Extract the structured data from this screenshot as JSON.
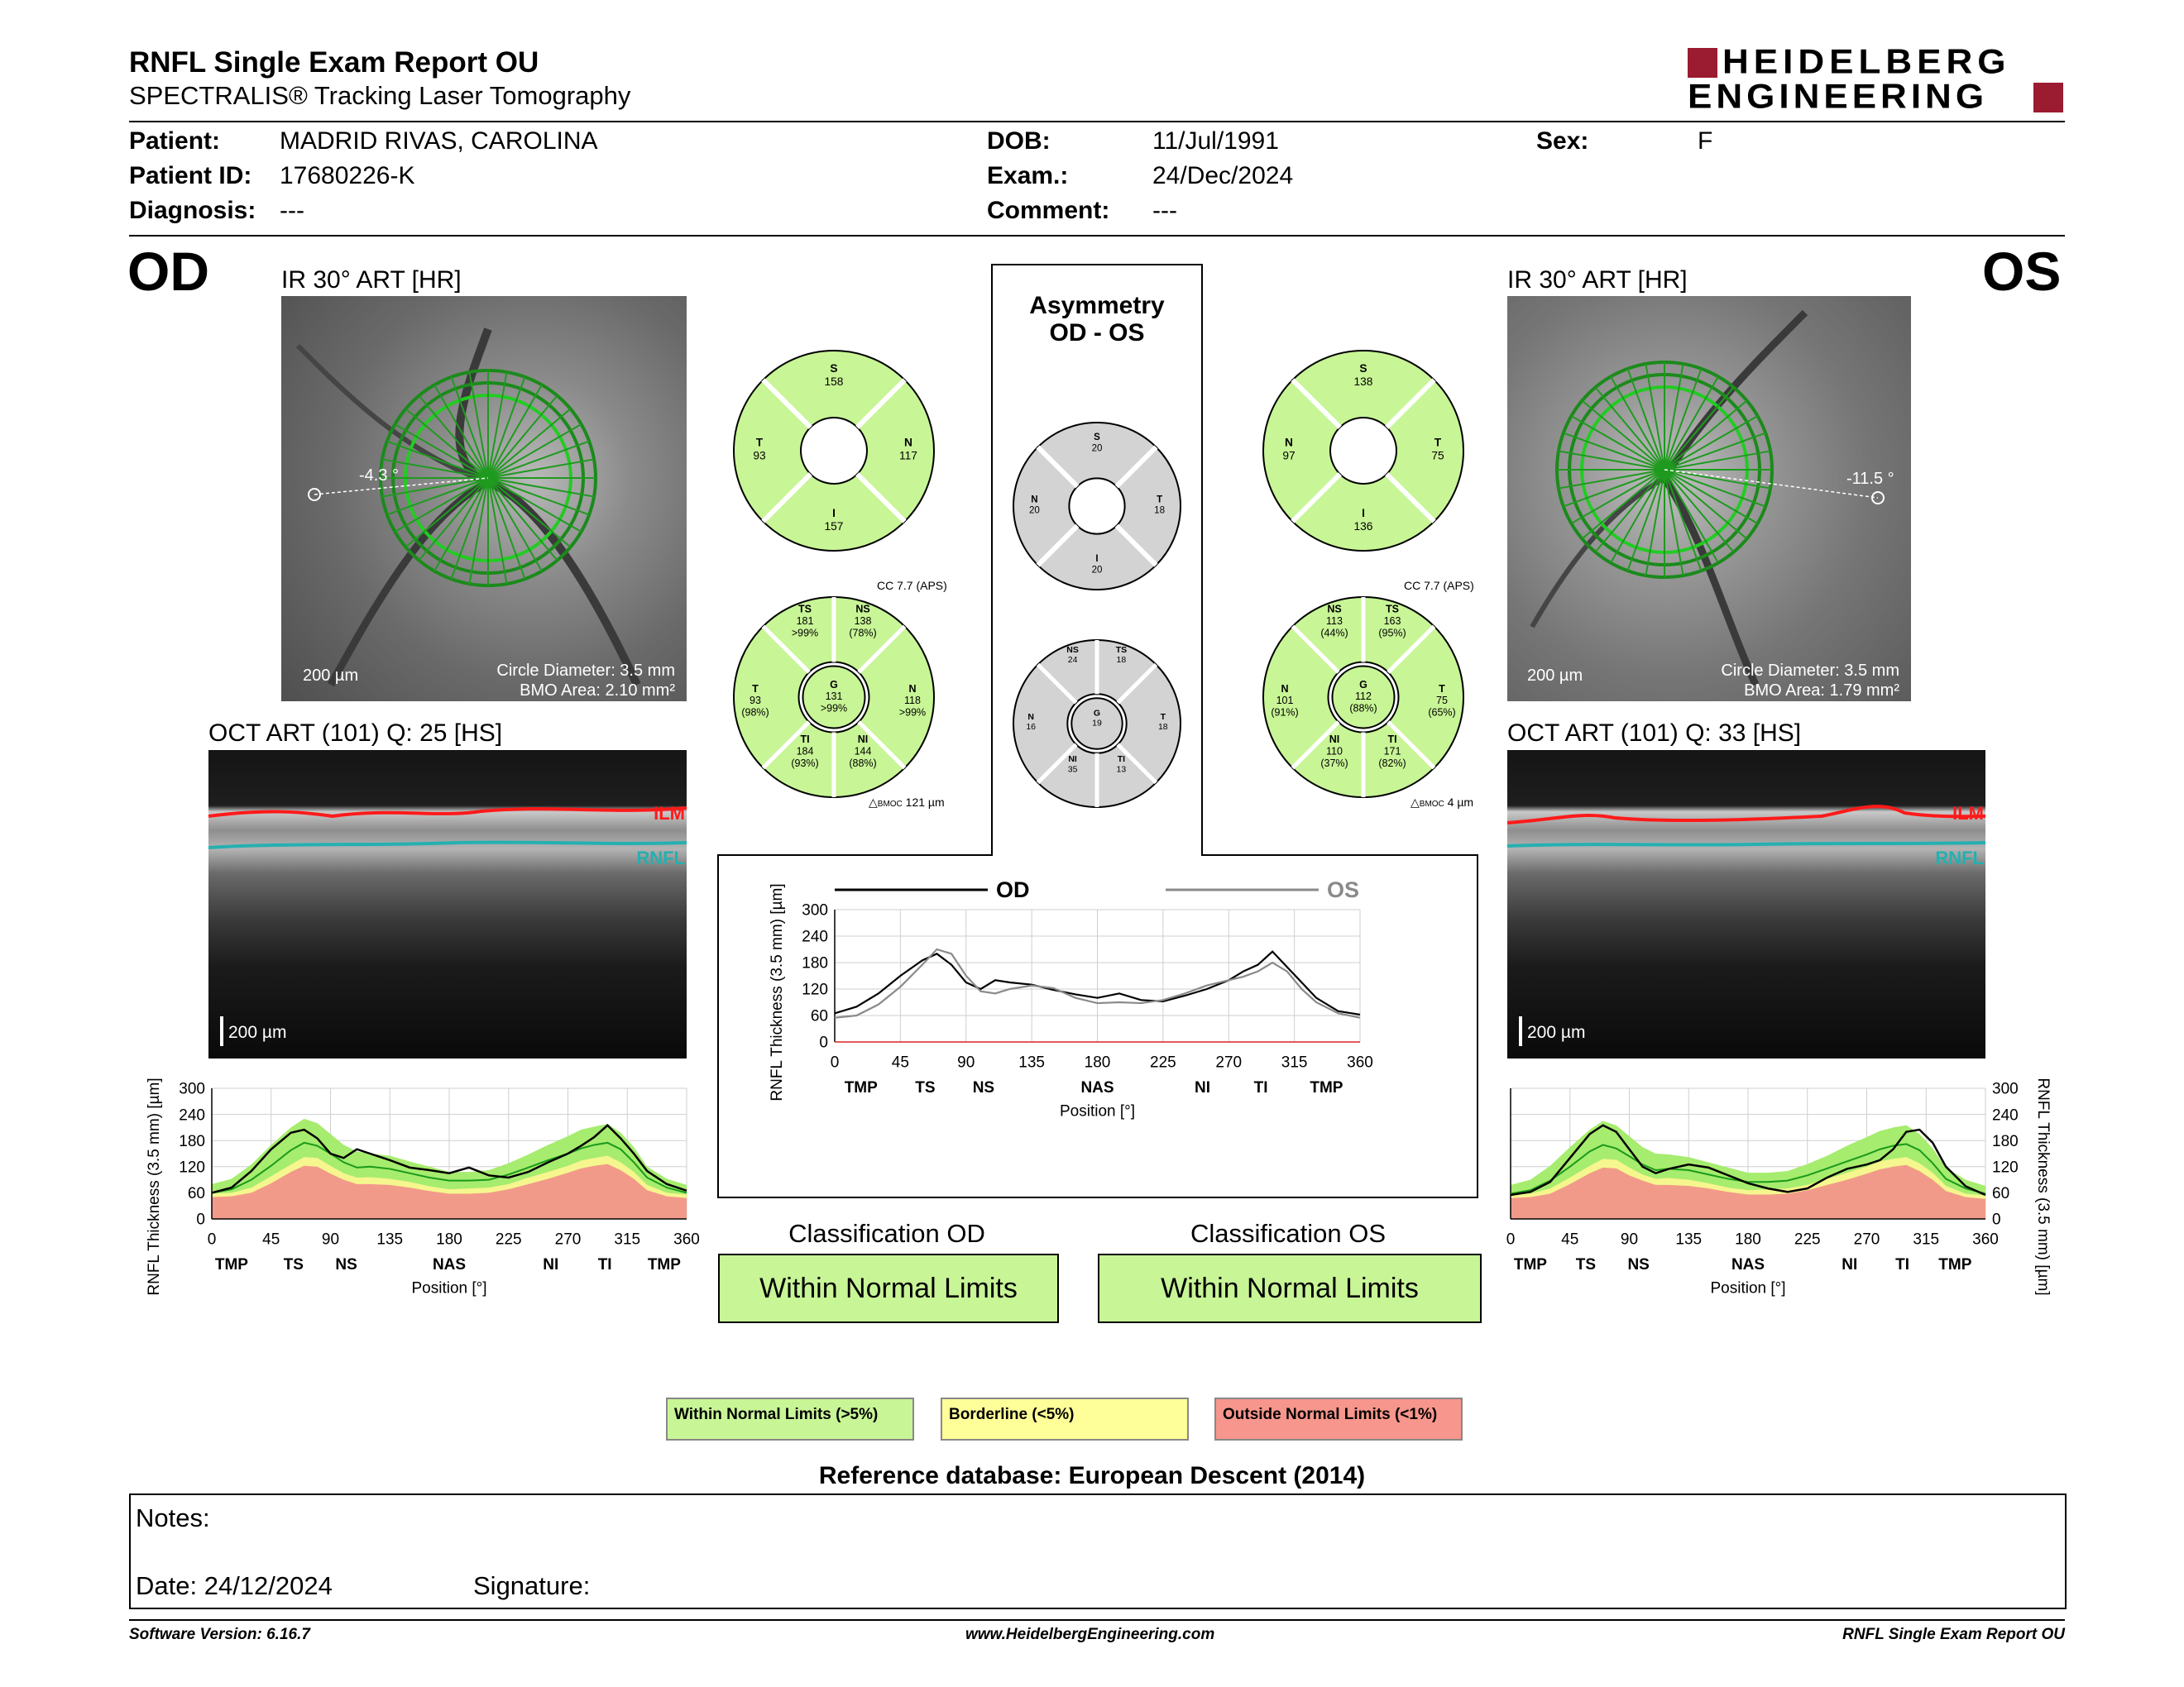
{
  "header": {
    "title": "RNFL Single Exam Report OU",
    "subtitle": "SPECTRALIS® Tracking Laser Tomography",
    "brand_line1": "HEIDELBERG",
    "brand_line2": "ENGINEERING",
    "brand_color": "#9b1b30"
  },
  "patient": {
    "patient_label": "Patient:",
    "patient_value": "MADRID RIVAS, CAROLINA",
    "id_label": "Patient ID:",
    "id_value": "17680226-K",
    "diag_label": "Diagnosis:",
    "diag_value": "---",
    "dob_label": "DOB:",
    "dob_value": "11/Jul/1991",
    "exam_label": "Exam.:",
    "exam_value": "24/Dec/2024",
    "comment_label": "Comment:",
    "comment_value": "---",
    "sex_label": "Sex:",
    "sex_value": "F"
  },
  "od": {
    "eye_label": "OD",
    "ir_title": "IR 30° ART [HR]",
    "angle": "-4.3 °",
    "scale": "200 µm",
    "circle_diameter": "Circle Diameter: 3.5 mm",
    "bmo_area": "BMO Area: 2.10 mm²",
    "oct_title": "OCT ART (101) Q: 25 [HS]",
    "oct_scale": "200 µm",
    "ilm": "ILM",
    "rnfl": "RNFL",
    "classification_label": "Classification OD",
    "classification_value": "Within Normal Limits",
    "quadrants": {
      "s_label": "S",
      "s": "158",
      "t_label": "T",
      "t": "93",
      "n_label": "N",
      "n": "117",
      "i_label": "I",
      "i": "157"
    },
    "sectors": {
      "cc": "CC 7.7 (APS)",
      "ts_label": "TS",
      "ts": "181",
      "ts_p": ">99%",
      "ns_label": "NS",
      "ns": "138",
      "ns_p": "(78%)",
      "t_label": "T",
      "t": "93",
      "t_p": "(98%)",
      "g_label": "G",
      "g": "131",
      "g_p": ">99%",
      "n_label": "N",
      "n": "118",
      "n_p": ">99%",
      "ti_label": "TI",
      "ti": "184",
      "ti_p": "(93%)",
      "ni_label": "NI",
      "ni": "144",
      "ni_p": "(88%)",
      "bmo_delta": "121 µm"
    }
  },
  "os": {
    "eye_label": "OS",
    "ir_title": "IR 30° ART [HR]",
    "angle": "-11.5 °",
    "scale": "200 µm",
    "circle_diameter": "Circle Diameter: 3.5 mm",
    "bmo_area": "BMO Area: 1.79 mm²",
    "oct_title": "OCT ART (101) Q: 33 [HS]",
    "oct_scale": "200 µm",
    "ilm": "ILM",
    "rnfl": "RNFL",
    "classification_label": "Classification OS",
    "classification_value": "Within Normal Limits",
    "quadrants": {
      "s_label": "S",
      "s": "138",
      "n_label": "N",
      "n": "97",
      "t_label": "T",
      "t": "75",
      "i_label": "I",
      "i": "136"
    },
    "sectors": {
      "cc": "CC 7.7 (APS)",
      "ns_label": "NS",
      "ns": "113",
      "ns_p": "(44%)",
      "ts_label": "TS",
      "ts": "163",
      "ts_p": "(95%)",
      "n_label": "N",
      "n": "101",
      "n_p": "(91%)",
      "g_label": "G",
      "g": "112",
      "g_p": "(88%)",
      "t_label": "T",
      "t": "75",
      "t_p": "(65%)",
      "ni_label": "NI",
      "ni": "110",
      "ni_p": "(37%)",
      "ti_label": "TI",
      "ti": "171",
      "ti_p": "(82%)",
      "bmo_delta": "4 µm"
    }
  },
  "asymmetry": {
    "title_line1": "Asymmetry",
    "title_line2": "OD - OS",
    "quadrants": {
      "s_label": "S",
      "s": "20",
      "n_label": "N",
      "n": "20",
      "t_label": "T",
      "t": "18",
      "i_label": "I",
      "i": "20"
    },
    "sectors": {
      "ns_label": "NS",
      "ns": "24",
      "ts_label": "TS",
      "ts": "18",
      "n_label": "N",
      "n": "16",
      "g_label": "G",
      "g": "19",
      "t_label": "T",
      "t": "18",
      "ni_label": "NI",
      "ni": "35",
      "ti_label": "TI",
      "ti": "13"
    }
  },
  "chart_data": [
    {
      "type": "line",
      "id": "od-profile",
      "ylabel": "RNFL Thickness (3.5 mm) [µm]",
      "xlabel": "Position [°]",
      "xlim": [
        0,
        360
      ],
      "ylim": [
        0,
        300
      ],
      "x_ticks": [
        "0",
        "45",
        "90",
        "135",
        "180",
        "225",
        "270",
        "315",
        "360"
      ],
      "y_ticks": [
        "0",
        "60",
        "120",
        "180",
        "240",
        "300"
      ],
      "region_labels": [
        "TMP",
        "TS",
        "NS",
        "NAS",
        "NI",
        "TI",
        "TMP"
      ],
      "region_positions": [
        15,
        62,
        102,
        180,
        257,
        298,
        343
      ],
      "bands": {
        "green": "#a6ec6e",
        "yellow": "#f6f68e",
        "red": "#f29a8a"
      },
      "x": [
        0,
        15,
        30,
        45,
        60,
        70,
        80,
        90,
        100,
        110,
        120,
        135,
        150,
        165,
        180,
        195,
        210,
        225,
        240,
        255,
        270,
        280,
        290,
        300,
        310,
        320,
        330,
        345,
        360
      ],
      "measured": [
        60,
        72,
        110,
        160,
        198,
        205,
        185,
        150,
        140,
        160,
        150,
        135,
        118,
        112,
        105,
        118,
        100,
        95,
        108,
        130,
        150,
        168,
        188,
        215,
        185,
        150,
        110,
        80,
        65
      ],
      "normal_mean": [
        60,
        68,
        90,
        122,
        158,
        175,
        168,
        150,
        130,
        118,
        120,
        115,
        105,
        95,
        88,
        88,
        90,
        102,
        118,
        135,
        150,
        162,
        170,
        175,
        160,
        130,
        95,
        72,
        60
      ],
      "upper": [
        80,
        92,
        125,
        170,
        210,
        230,
        220,
        195,
        170,
        155,
        150,
        145,
        132,
        120,
        108,
        108,
        112,
        128,
        148,
        170,
        190,
        205,
        212,
        218,
        198,
        165,
        120,
        92,
        78
      ],
      "yellow_top": [
        58,
        60,
        72,
        98,
        125,
        142,
        140,
        122,
        105,
        95,
        96,
        92,
        85,
        75,
        68,
        70,
        72,
        80,
        95,
        108,
        122,
        134,
        140,
        145,
        130,
        108,
        78,
        60,
        56
      ],
      "red_top": [
        50,
        52,
        60,
        82,
        108,
        122,
        120,
        104,
        90,
        80,
        80,
        78,
        72,
        64,
        58,
        58,
        60,
        68,
        80,
        92,
        106,
        116,
        122,
        126,
        112,
        92,
        66,
        52,
        48
      ]
    },
    {
      "type": "line",
      "id": "asymmetry-profile",
      "ylabel": "RNFL Thickness (3.5 mm) [µm]",
      "xlabel": "Position [°]",
      "xlim": [
        0,
        360
      ],
      "ylim": [
        0,
        300
      ],
      "x_ticks": [
        "0",
        "45",
        "90",
        "135",
        "180",
        "225",
        "270",
        "315",
        "360"
      ],
      "y_ticks": [
        "0",
        "60",
        "120",
        "180",
        "240",
        "300"
      ],
      "region_labels": [
        "TMP",
        "TS",
        "NS",
        "NAS",
        "NI",
        "TI",
        "TMP"
      ],
      "region_positions": [
        18,
        62,
        102,
        180,
        252,
        292,
        337
      ],
      "legend": [
        {
          "name": "OD",
          "color": "#000000"
        },
        {
          "name": "OS",
          "color": "#8a8a8a"
        }
      ],
      "x": [
        0,
        15,
        30,
        45,
        60,
        70,
        80,
        90,
        100,
        110,
        120,
        135,
        150,
        165,
        180,
        195,
        210,
        225,
        240,
        255,
        270,
        280,
        290,
        300,
        310,
        320,
        330,
        345,
        360
      ],
      "series": [
        {
          "name": "OD",
          "values": [
            65,
            80,
            110,
            150,
            185,
            200,
            175,
            135,
            120,
            140,
            135,
            130,
            118,
            108,
            100,
            110,
            95,
            92,
            105,
            120,
            140,
            160,
            175,
            205,
            170,
            135,
            100,
            70,
            62
          ]
        },
        {
          "name": "OS",
          "values": [
            55,
            60,
            85,
            125,
            175,
            210,
            200,
            150,
            115,
            110,
            120,
            128,
            122,
            100,
            88,
            90,
            88,
            95,
            110,
            128,
            140,
            148,
            160,
            180,
            160,
            120,
            90,
            65,
            55
          ]
        }
      ]
    },
    {
      "type": "line",
      "id": "os-profile",
      "ylabel": "RNFL Thickness (3.5 mm) [µm]",
      "xlabel": "Position [°]",
      "xlim": [
        0,
        360
      ],
      "ylim": [
        0,
        300
      ],
      "x_ticks": [
        "0",
        "45",
        "90",
        "135",
        "180",
        "225",
        "270",
        "315",
        "360"
      ],
      "y_ticks": [
        "0",
        "60",
        "120",
        "180",
        "240",
        "300"
      ],
      "region_labels": [
        "TMP",
        "TS",
        "NS",
        "NAS",
        "NI",
        "TI",
        "TMP"
      ],
      "region_positions": [
        15,
        57,
        97,
        180,
        257,
        297,
        337
      ],
      "bands": {
        "green": "#a6ec6e",
        "yellow": "#f6f68e",
        "red": "#f29a8a"
      },
      "x": [
        0,
        15,
        30,
        45,
        60,
        70,
        80,
        90,
        100,
        110,
        120,
        135,
        150,
        165,
        180,
        195,
        210,
        225,
        240,
        255,
        270,
        280,
        290,
        300,
        310,
        320,
        330,
        345,
        360
      ],
      "measured": [
        55,
        62,
        85,
        140,
        195,
        215,
        200,
        160,
        120,
        105,
        115,
        125,
        118,
        100,
        82,
        70,
        62,
        70,
        95,
        115,
        125,
        135,
        160,
        200,
        205,
        175,
        120,
        75,
        55
      ],
      "normal_mean": [
        58,
        66,
        88,
        120,
        155,
        170,
        162,
        144,
        125,
        112,
        115,
        112,
        102,
        92,
        85,
        85,
        88,
        100,
        116,
        132,
        148,
        160,
        168,
        172,
        158,
        128,
        92,
        70,
        58
      ],
      "upper": [
        78,
        90,
        122,
        165,
        205,
        225,
        215,
        190,
        165,
        150,
        148,
        142,
        130,
        118,
        106,
        106,
        110,
        126,
        145,
        168,
        188,
        202,
        210,
        215,
        195,
        162,
        118,
        90,
        76
      ],
      "yellow_top": [
        56,
        58,
        70,
        95,
        122,
        138,
        136,
        118,
        102,
        92,
        94,
        90,
        82,
        72,
        66,
        68,
        70,
        78,
        92,
        106,
        120,
        132,
        138,
        142,
        128,
        106,
        76,
        58,
        54
      ],
      "red_top": [
        48,
        50,
        58,
        80,
        105,
        118,
        116,
        100,
        88,
        78,
        78,
        76,
        70,
        62,
        56,
        56,
        58,
        66,
        78,
        90,
        104,
        114,
        120,
        124,
        110,
        90,
        64,
        50,
        46
      ]
    }
  ],
  "legend": {
    "wnl": "Within Normal Limits (>5%)",
    "wnl_color": "#c8f596",
    "borderline": "Borderline (<5%)",
    "borderline_color": "#ffff99",
    "onl": "Outside Normal Limits (<1%)",
    "onl_color": "#f7968c"
  },
  "reference": "Reference database: European Descent (2014)",
  "notes": {
    "notes_label": "Notes:",
    "date_label": "Date: 24/12/2024",
    "signature_label": "Signature:"
  },
  "footer": {
    "left": "Software Version: 6.16.7",
    "center": "www.HeidelbergEngineering.com",
    "right": "RNFL Single Exam Report OU"
  }
}
